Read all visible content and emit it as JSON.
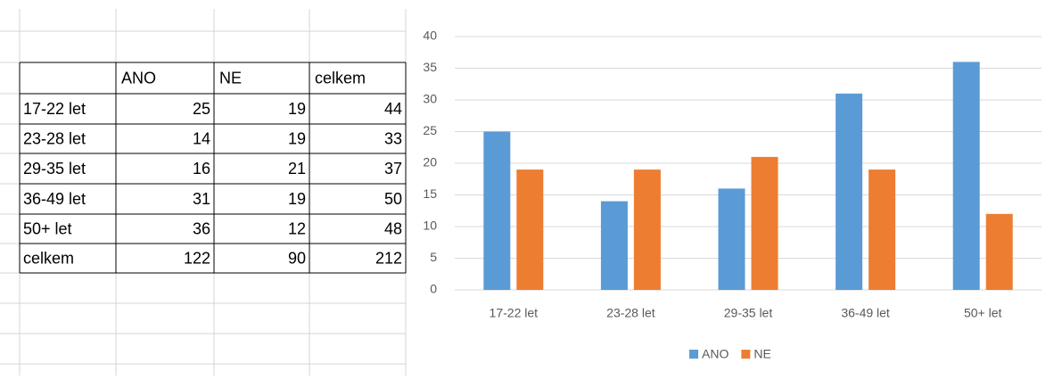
{
  "table": {
    "columns": [
      "ANO",
      "NE",
      "celkem"
    ],
    "rows": [
      {
        "label": "17-22 let",
        "values": [
          25,
          19,
          44
        ]
      },
      {
        "label": "23-28 let",
        "values": [
          14,
          19,
          33
        ]
      },
      {
        "label": "29-35 let",
        "values": [
          16,
          21,
          37
        ]
      },
      {
        "label": "36-49 let",
        "values": [
          31,
          19,
          50
        ]
      },
      {
        "label": "50+ let",
        "values": [
          36,
          12,
          48
        ]
      },
      {
        "label": "celkem",
        "values": [
          122,
          90,
          212
        ]
      }
    ]
  },
  "chart_data": {
    "type": "bar",
    "categories": [
      "17-22 let",
      "23-28 let",
      "29-35 let",
      "36-49 let",
      "50+ let"
    ],
    "series": [
      {
        "name": "ANO",
        "color": "#5b9bd5",
        "values": [
          25,
          14,
          16,
          31,
          36
        ]
      },
      {
        "name": "NE",
        "color": "#ed7d31",
        "values": [
          19,
          19,
          21,
          19,
          12
        ]
      }
    ],
    "ylim": [
      0,
      40
    ],
    "yticks": [
      0,
      5,
      10,
      15,
      20,
      25,
      30,
      35,
      40
    ],
    "grid": true,
    "legend": "bottom"
  }
}
